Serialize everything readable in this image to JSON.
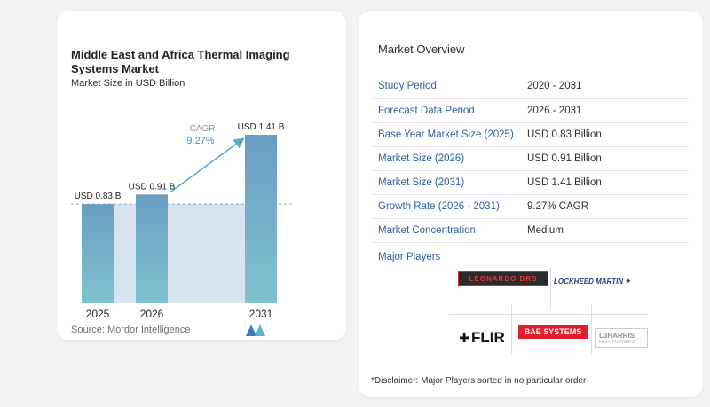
{
  "chart_data": {
    "type": "bar",
    "title": "Middle East and Africa Thermal Imaging Systems Market",
    "subtitle": "Market Size in USD Billion",
    "categories": [
      "2025",
      "2026",
      "2031"
    ],
    "values": [
      0.83,
      0.91,
      1.41
    ],
    "value_labels": [
      "USD 0.83 B",
      "USD 0.91 B",
      "USD 1.41 B"
    ],
    "cagr_label": "CAGR",
    "cagr_value": "9.27%",
    "colors": {
      "bar_top": "#6a9ec4",
      "bar_bottom": "#7fc3cf",
      "shade": "#d6e4ef",
      "arrow": "#5aa9c7"
    },
    "source": "Source:  Mordor Intelligence"
  },
  "overview": {
    "title": "Market Overview",
    "rows": [
      {
        "key": "Study Period",
        "value": "2020 - 2031"
      },
      {
        "key": "Forecast Data Period",
        "value": "2026 - 2031"
      },
      {
        "key": "Base Year Market Size (2025)",
        "value": "USD 0.83 Billion"
      },
      {
        "key": "Market Size (2026)",
        "value": "USD 0.91 Billion"
      },
      {
        "key": "Market Size (2031)",
        "value": "USD 1.41 Billion"
      },
      {
        "key": "Growth Rate (2026 - 2031)",
        "value": "9.27% CAGR"
      },
      {
        "key": "Market Concentration",
        "value": "Medium"
      }
    ]
  },
  "players": {
    "title": "Major Players",
    "logos": {
      "leonardo": "LEONARDO DRS",
      "lockheed": "LOCKHEED MARTIN",
      "flir": "FLIR",
      "bae": "BAE SYSTEMS",
      "l3harris": "L3HARRIS",
      "l3harris_sub": "FAST. FORWARD."
    }
  },
  "disclaimer": "*Disclaimer: Major Players sorted in no particular order"
}
